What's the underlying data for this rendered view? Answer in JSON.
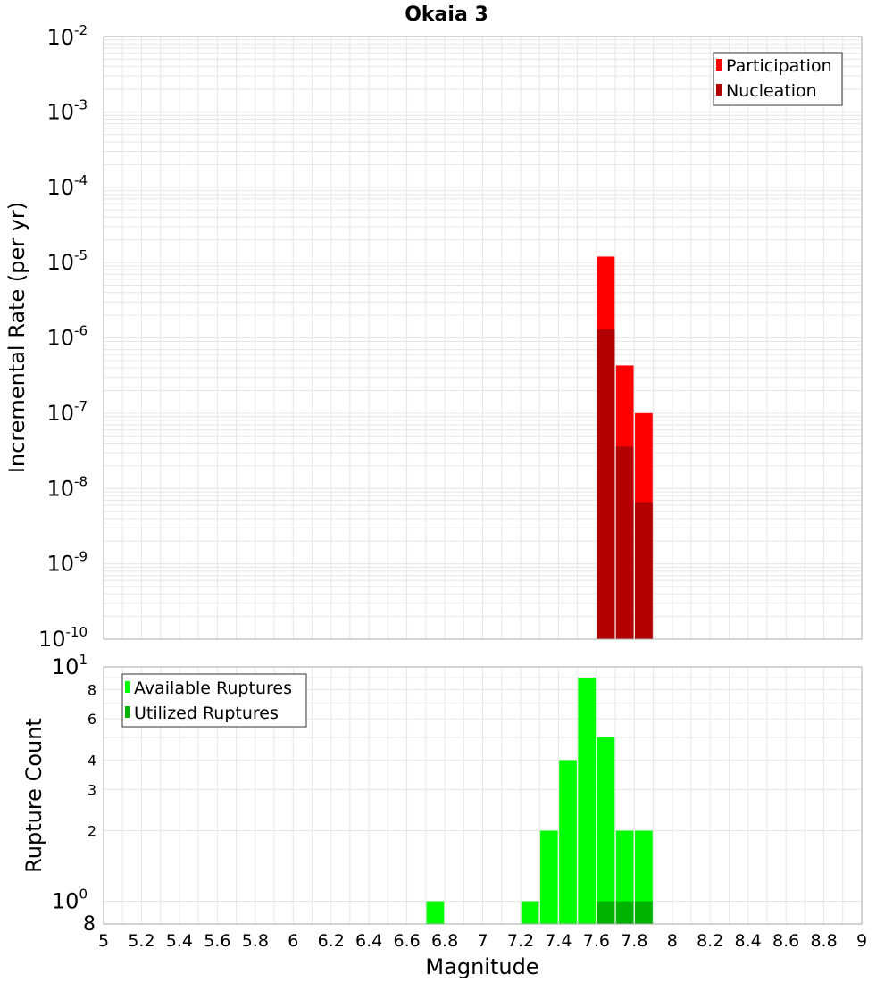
{
  "chart_data": [
    {
      "type": "bar",
      "title": "Okaia 3",
      "ylabel": "Incremental Rate (per yr)",
      "xlabel": "",
      "yscale": "log",
      "ylim": [
        1e-10,
        0.01
      ],
      "xlim": [
        5,
        9
      ],
      "y_major_ticks": [
        {
          "base": "10",
          "exp": "-2"
        },
        {
          "base": "10",
          "exp": "-3"
        },
        {
          "base": "10",
          "exp": "-4"
        },
        {
          "base": "10",
          "exp": "-5"
        },
        {
          "base": "10",
          "exp": "-6"
        },
        {
          "base": "10",
          "exp": "-7"
        },
        {
          "base": "10",
          "exp": "-8"
        },
        {
          "base": "10",
          "exp": "-9"
        },
        {
          "base": "10",
          "exp": "-10"
        }
      ],
      "grid": true,
      "legend_position": "top-right",
      "series": [
        {
          "name": "Participation",
          "color": "#ff0000",
          "x": [
            7.65,
            7.75,
            7.85
          ],
          "values": [
            1.2e-05,
            4.3e-07,
            1e-07
          ]
        },
        {
          "name": "Nucleation",
          "color": "#b20000",
          "x": [
            7.65,
            7.75,
            7.85
          ],
          "values": [
            1.3e-06,
            3.6e-08,
            6.6e-09
          ]
        }
      ]
    },
    {
      "type": "bar",
      "title": "",
      "ylabel": "Rupture Count",
      "xlabel": "Magnitude",
      "yscale": "log",
      "ylim": [
        0.8,
        10
      ],
      "xlim": [
        5,
        9
      ],
      "y_major_ticks": [
        {
          "base": "10",
          "exp": "1",
          "value": 10
        },
        {
          "base": "10",
          "exp": "0",
          "value": 1
        }
      ],
      "y_minor_ticks": [
        {
          "label": "8",
          "value": 8
        },
        {
          "label": "6",
          "value": 6
        },
        {
          "label": "4",
          "value": 4
        },
        {
          "label": "3",
          "value": 3
        },
        {
          "label": "2",
          "value": 2
        }
      ],
      "y_bottom_label": "8",
      "x_ticks": [
        "5",
        "5.2",
        "5.4",
        "5.6",
        "5.8",
        "6",
        "6.2",
        "6.4",
        "6.6",
        "6.8",
        "7",
        "7.2",
        "7.4",
        "7.6",
        "7.8",
        "8",
        "8.2",
        "8.4",
        "8.6",
        "8.8",
        "9"
      ],
      "grid": true,
      "legend_position": "top-left",
      "series": [
        {
          "name": "Available Ruptures",
          "color": "#00ff00",
          "x": [
            6.75,
            7.25,
            7.35,
            7.45,
            7.55,
            7.65,
            7.75,
            7.85
          ],
          "values": [
            1,
            1,
            2,
            4,
            9,
            5,
            2,
            2
          ]
        },
        {
          "name": "Utilized Ruptures",
          "color": "#00b200",
          "x": [
            7.65,
            7.75,
            7.85
          ],
          "values": [
            1,
            1,
            1
          ]
        }
      ]
    }
  ]
}
